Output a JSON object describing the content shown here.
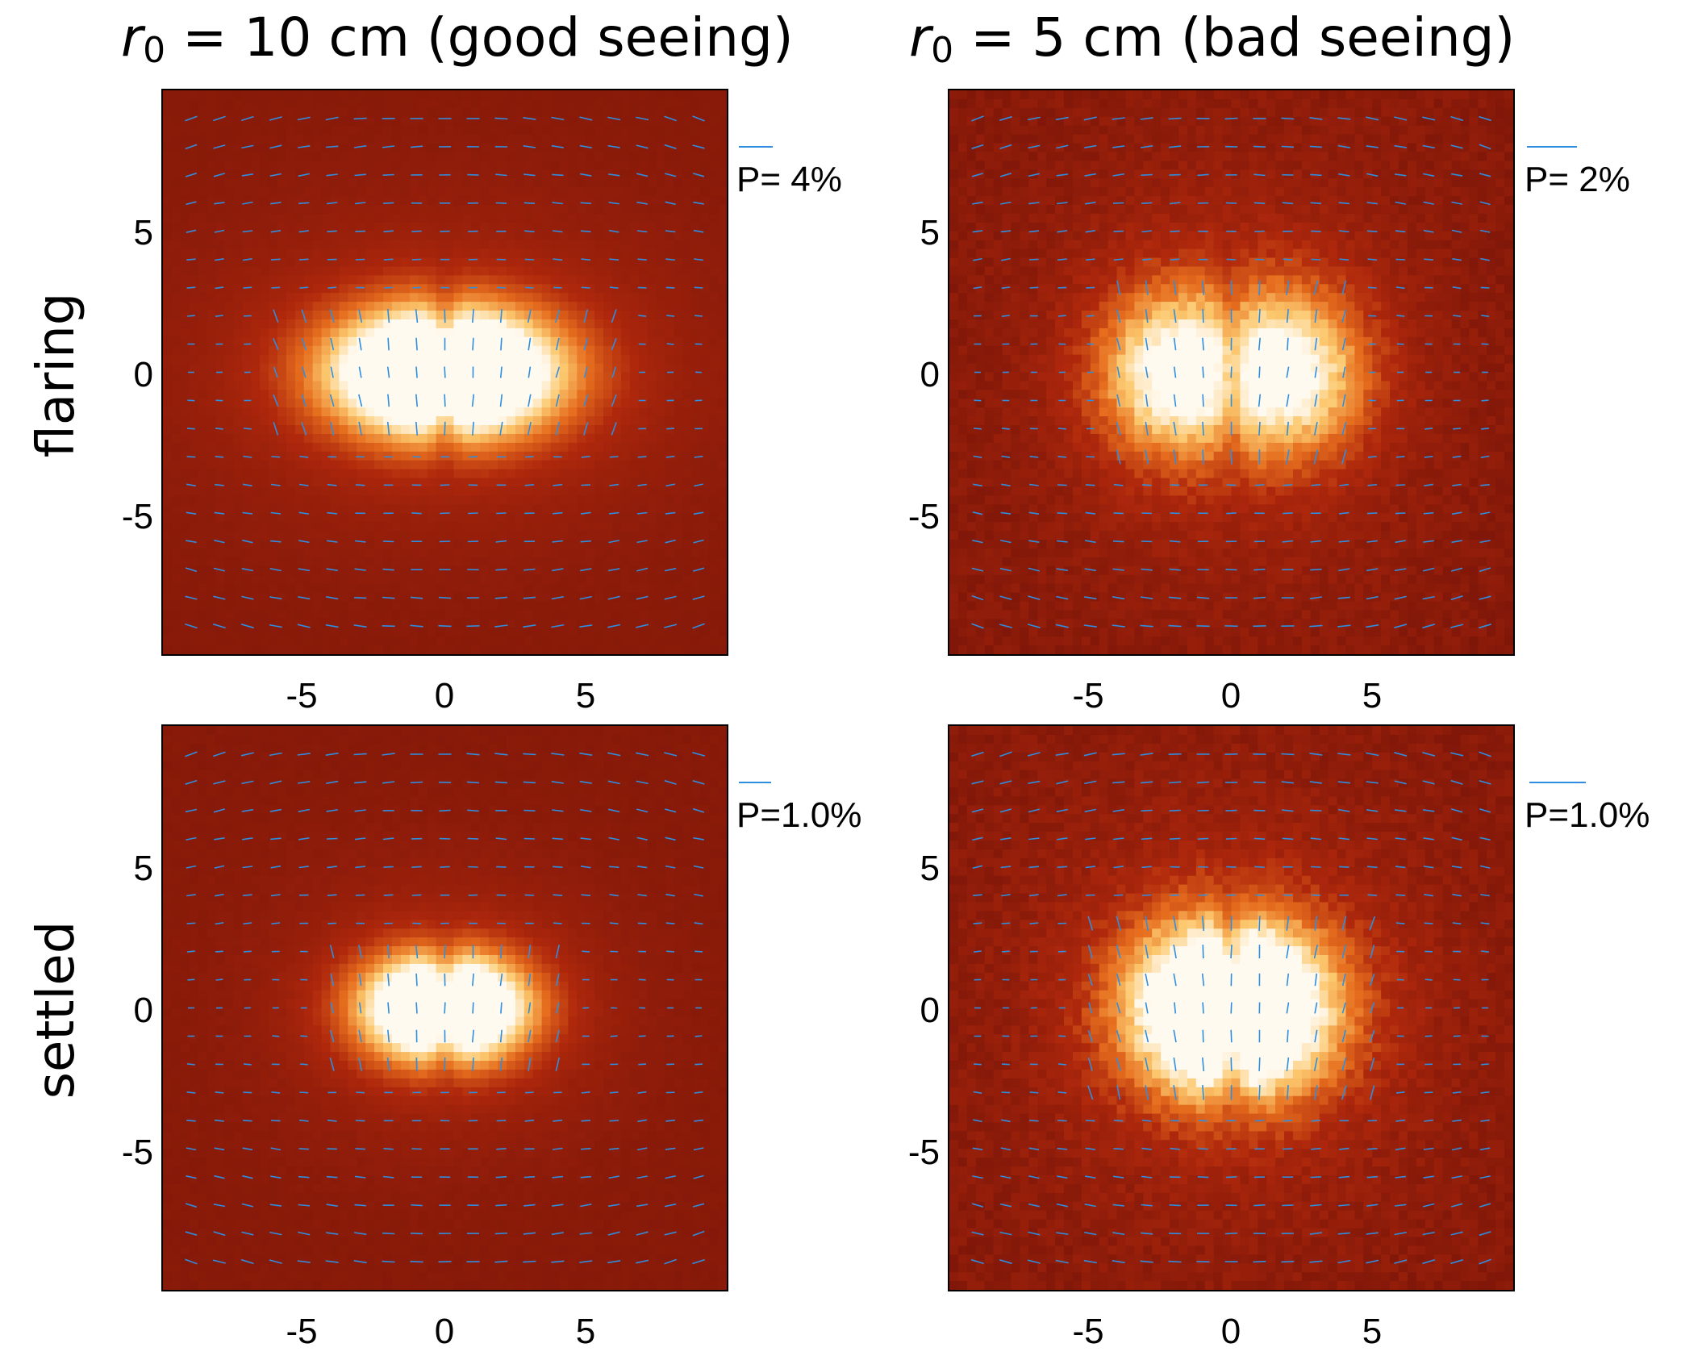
{
  "figure": {
    "columns": [
      {
        "r_prefix": "r",
        "r_sub": "0",
        "title_rest": " = 10 cm (good seeing)"
      },
      {
        "r_prefix": "r",
        "r_sub": "0",
        "title_rest": " = 5 cm (bad seeing)"
      }
    ],
    "rows": [
      {
        "label": "flaring"
      },
      {
        "label": "settled"
      }
    ]
  },
  "chart_data": [
    {
      "type": "heatmap",
      "model": "flaring",
      "seeing_r0_cm": 10,
      "scale_label": "P= 4%",
      "scale_percent": 4,
      "lobe_separation": 1.1,
      "lobe_spread_x": 2.8,
      "lobe_spread_y": 1.7,
      "speckle": 0.05,
      "xlim": [
        -10,
        10
      ],
      "ylim": [
        -10,
        10
      ],
      "xticks": [
        "-5",
        "0",
        "5"
      ],
      "yticks": [
        "5",
        "0",
        "-5"
      ]
    },
    {
      "type": "heatmap",
      "model": "flaring",
      "seeing_r0_cm": 5,
      "scale_label": "P= 2%",
      "scale_percent": 2,
      "lobe_separation": 2.2,
      "lobe_spread_x": 2.0,
      "lobe_spread_y": 2.2,
      "speckle": 0.22,
      "xlim": [
        -10,
        10
      ],
      "ylim": [
        -10,
        10
      ],
      "xticks": [
        "-5",
        "0",
        "5"
      ],
      "yticks": [
        "5",
        "0",
        "-5"
      ]
    },
    {
      "type": "heatmap",
      "model": "settled",
      "seeing_r0_cm": 10,
      "scale_label": "P=1.0%",
      "scale_percent": 1.0,
      "lobe_separation": 1.0,
      "lobe_spread_x": 1.9,
      "lobe_spread_y": 1.4,
      "speckle": 0.06,
      "xlim": [
        -10,
        10
      ],
      "ylim": [
        -10,
        10
      ],
      "xticks": [
        "-5",
        "0",
        "5"
      ],
      "yticks": [
        "5",
        "0",
        "-5"
      ]
    },
    {
      "type": "heatmap",
      "model": "settled",
      "seeing_r0_cm": 5,
      "scale_label": "P=1.0%",
      "scale_percent": 1.0,
      "lobe_separation": 1.1,
      "lobe_spread_x": 2.4,
      "lobe_spread_y": 2.3,
      "speckle": 0.25,
      "xlim": [
        -10,
        10
      ],
      "ylim": [
        -10,
        10
      ],
      "xticks": [
        "-5",
        "0",
        "5"
      ],
      "yticks": [
        "5",
        "0",
        "-5"
      ]
    }
  ],
  "colors": {
    "background": "#8a1a0b",
    "vectors": "#2f8ee0",
    "peak": "#fffaf0"
  }
}
